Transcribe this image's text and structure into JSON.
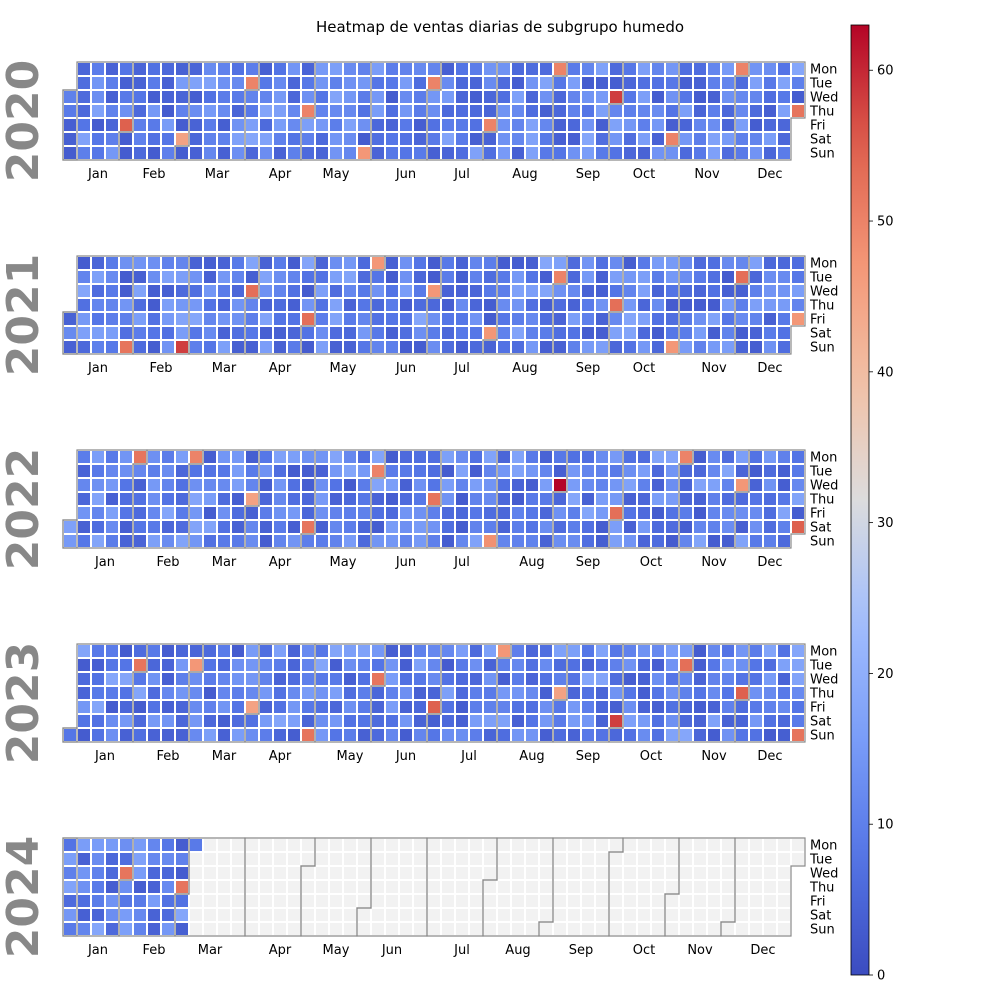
{
  "chart_data": {
    "type": "heatmap",
    "title": "Heatmap de ventas diarias de subgrupo humedo",
    "years": [
      "2020",
      "2021",
      "2022",
      "2023",
      "2024"
    ],
    "weekday_labels": [
      "Mon",
      "Tue",
      "Wed",
      "Thu",
      "Fri",
      "Sat",
      "Sun"
    ],
    "month_labels": [
      "Jan",
      "Feb",
      "Mar",
      "Apr",
      "May",
      "Jun",
      "Jul",
      "Aug",
      "Sep",
      "Oct",
      "Nov",
      "Dec"
    ],
    "colorbar": {
      "range": [
        0,
        63
      ],
      "ticks": [
        "0",
        "10",
        "20",
        "30",
        "40",
        "50",
        "60"
      ],
      "colormap": "coolwarm"
    },
    "typical_daily_value_range": [
      3,
      18
    ],
    "missing_color": "#f2f2f2",
    "peaks": [
      {
        "date": "2020-01-31",
        "value": 55
      },
      {
        "date": "2020-02-29",
        "value": 45
      },
      {
        "date": "2020-03-31",
        "value": 50
      },
      {
        "date": "2020-04-30",
        "value": 50
      },
      {
        "date": "2020-05-31",
        "value": 47
      },
      {
        "date": "2020-06-30",
        "value": 50
      },
      {
        "date": "2020-07-31",
        "value": 50
      },
      {
        "date": "2020-08-31",
        "value": 50
      },
      {
        "date": "2020-09-30",
        "value": 58
      },
      {
        "date": "2020-10-31",
        "value": 50
      },
      {
        "date": "2020-11-30",
        "value": 50
      },
      {
        "date": "2020-12-31",
        "value": 52
      },
      {
        "date": "2021-01-31",
        "value": 52
      },
      {
        "date": "2021-02-28",
        "value": 58
      },
      {
        "date": "2021-03-31",
        "value": 53
      },
      {
        "date": "2021-04-30",
        "value": 53
      },
      {
        "date": "2021-05-31",
        "value": 47
      },
      {
        "date": "2021-06-30",
        "value": 47
      },
      {
        "date": "2021-07-31",
        "value": 47
      },
      {
        "date": "2021-08-31",
        "value": 50
      },
      {
        "date": "2021-09-30",
        "value": 53
      },
      {
        "date": "2021-10-31",
        "value": 47
      },
      {
        "date": "2021-11-30",
        "value": 53
      },
      {
        "date": "2021-12-31",
        "value": 47
      },
      {
        "date": "2022-01-31",
        "value": 52
      },
      {
        "date": "2022-02-28",
        "value": 50
      },
      {
        "date": "2022-03-31",
        "value": 45
      },
      {
        "date": "2022-04-30",
        "value": 52
      },
      {
        "date": "2022-05-31",
        "value": 50
      },
      {
        "date": "2022-06-30",
        "value": 52
      },
      {
        "date": "2022-07-31",
        "value": 48
      },
      {
        "date": "2022-08-31",
        "value": 63
      },
      {
        "date": "2022-09-30",
        "value": 53
      },
      {
        "date": "2022-10-31",
        "value": 50
      },
      {
        "date": "2022-11-30",
        "value": 47
      },
      {
        "date": "2022-12-31",
        "value": 55
      },
      {
        "date": "2023-01-31",
        "value": 52
      },
      {
        "date": "2023-02-28",
        "value": 47
      },
      {
        "date": "2023-03-31",
        "value": 45
      },
      {
        "date": "2023-04-30",
        "value": 52
      },
      {
        "date": "2023-05-31",
        "value": 52
      },
      {
        "date": "2023-06-30",
        "value": 55
      },
      {
        "date": "2023-07-31",
        "value": 47
      },
      {
        "date": "2023-08-31",
        "value": 45
      },
      {
        "date": "2023-09-30",
        "value": 58
      },
      {
        "date": "2023-10-31",
        "value": 53
      },
      {
        "date": "2023-11-30",
        "value": 55
      },
      {
        "date": "2023-12-31",
        "value": 52
      },
      {
        "date": "2024-01-31",
        "value": 52
      },
      {
        "date": "2024-02-29",
        "value": 52
      }
    ],
    "data_end_date": "2024-03-04"
  }
}
